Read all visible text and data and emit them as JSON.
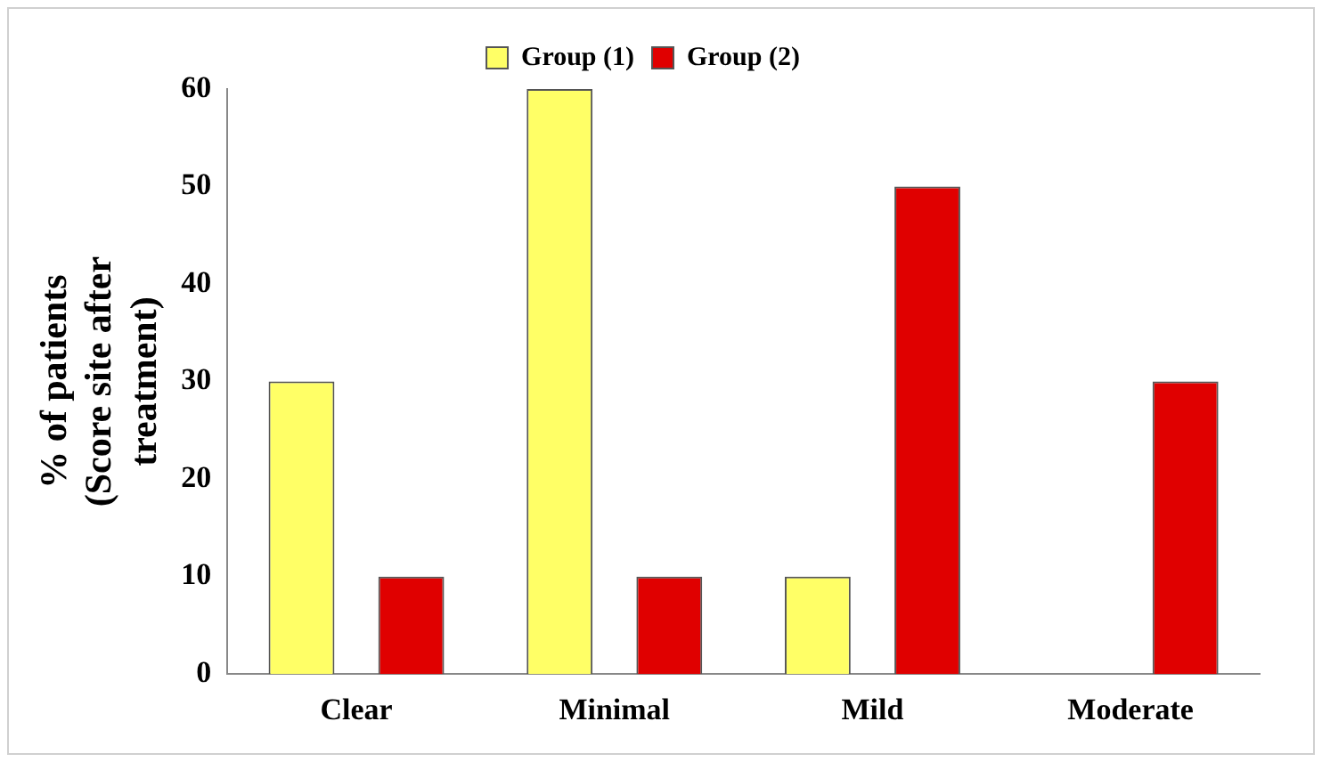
{
  "chart_data": {
    "type": "bar",
    "ylabel": "% of patients (Score site after treatment)",
    "categories": [
      "Clear",
      "Minimal",
      "Mild",
      "Moderate"
    ],
    "series": [
      {
        "name": "Group (1)",
        "color": "#ffff66",
        "values": [
          30,
          60,
          10,
          0
        ]
      },
      {
        "name": "Group (2)",
        "color": "#e00000",
        "values": [
          10,
          10,
          50,
          30
        ]
      }
    ],
    "ylim": [
      0,
      60
    ],
    "yticks": [
      0,
      10,
      20,
      30,
      40,
      50,
      60
    ],
    "grid": false,
    "legend": "top"
  }
}
